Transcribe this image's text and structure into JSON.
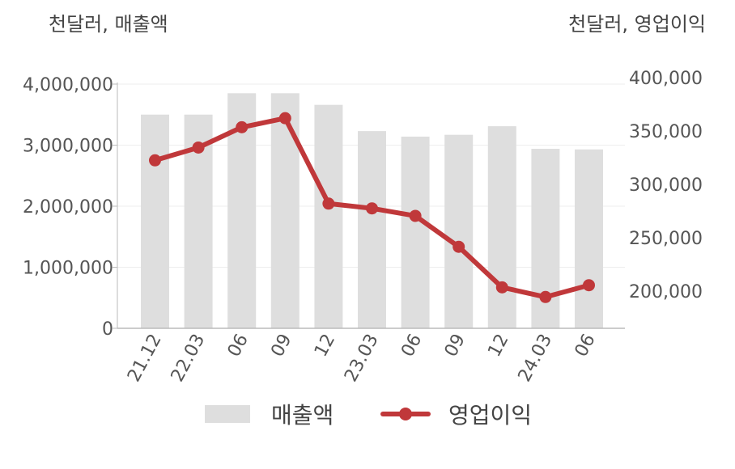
{
  "units": {
    "left": "천달러, 매출액",
    "right": "천달러, 영업이익"
  },
  "colors": {
    "bar": "#dedede",
    "line": "#c0383a",
    "grid": "#eeeeee",
    "axis": "#bbbbbb"
  },
  "chart_data": {
    "type": "bar",
    "categories": [
      "21.12",
      "22.03",
      "06",
      "09",
      "12",
      "23.03",
      "06",
      "09",
      "12",
      "24.03",
      "06"
    ],
    "series": [
      {
        "name": "매출액",
        "type": "bar",
        "axis": "left",
        "values": [
          3500000,
          3500000,
          3850000,
          3850000,
          3660000,
          3230000,
          3140000,
          3170000,
          3310000,
          2940000,
          2930000
        ]
      },
      {
        "name": "영업이익",
        "type": "line",
        "axis": "right",
        "values": [
          322500,
          334500,
          353500,
          362000,
          282000,
          277500,
          270500,
          241500,
          203500,
          194500,
          205500
        ]
      }
    ],
    "y_left": {
      "ticks": [
        0,
        1000000,
        2000000,
        3000000,
        4000000
      ],
      "tick_labels": [
        "0",
        "1,000,000",
        "2,000,000",
        "3,000,000",
        "4,000,000"
      ],
      "ylim": [
        0,
        4000000
      ]
    },
    "y_right": {
      "ticks": [
        200000,
        250000,
        300000,
        350000,
        400000
      ],
      "tick_labels": [
        "200,000",
        "250,000",
        "300,000",
        "350,000",
        "400,000"
      ]
    },
    "grid": true,
    "legend_position": "bottom"
  }
}
